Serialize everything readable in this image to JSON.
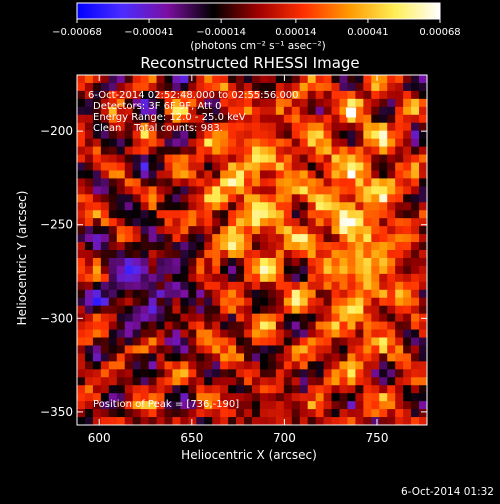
{
  "chart_data": {
    "type": "heatmap",
    "title": "Reconstructed RHESSI Image",
    "xlabel": "Heliocentric X (arcsec)",
    "ylabel": "Heliocentric Y (arcsec)",
    "xlim": [
      588,
      777
    ],
    "ylim": [
      -357,
      -170
    ],
    "x_ticks": [
      {
        "value": 600,
        "label": "600"
      },
      {
        "value": 650,
        "label": "650"
      },
      {
        "value": 700,
        "label": "700"
      },
      {
        "value": 750,
        "label": "750"
      }
    ],
    "y_ticks": [
      {
        "value": -200,
        "label": "−200"
      },
      {
        "value": -250,
        "label": "−250"
      },
      {
        "value": -300,
        "label": "−300"
      },
      {
        "value": -350,
        "label": "−350"
      }
    ],
    "colorbar": {
      "range": [
        -0.00068,
        0.00068
      ],
      "ticks": [
        {
          "value": -0.00068,
          "label": "−0.00068"
        },
        {
          "value": -0.00041,
          "label": "−0.00041"
        },
        {
          "value": -0.00014,
          "label": "−0.00014"
        },
        {
          "value": 0.00014,
          "label": "0.00014"
        },
        {
          "value": 0.00041,
          "label": "0.00041"
        },
        {
          "value": 0.00068,
          "label": "0.00068"
        }
      ],
      "unit_label": "(photons cm⁻² s⁻¹ asec⁻²)",
      "colors": [
        "#0000ff",
        "#4c2cff",
        "#7a0fa0",
        "#000000",
        "#a00000",
        "#ff3000",
        "#ff9900",
        "#ffee55",
        "#ffffff"
      ]
    },
    "annotations": [
      "6-Oct-2014 02:52:48.000 to 02:55:56.000",
      "Detectors: 3F 6F 9F, Att 0",
      "Energy Range: 12.0 - 25.0 keV",
      "Clean    Total counts: 983.",
      "Position of Peak = [736,-190]"
    ],
    "peak": {
      "x": 736,
      "y": -190
    },
    "footer_date": "6-Oct-2014 01:32"
  }
}
